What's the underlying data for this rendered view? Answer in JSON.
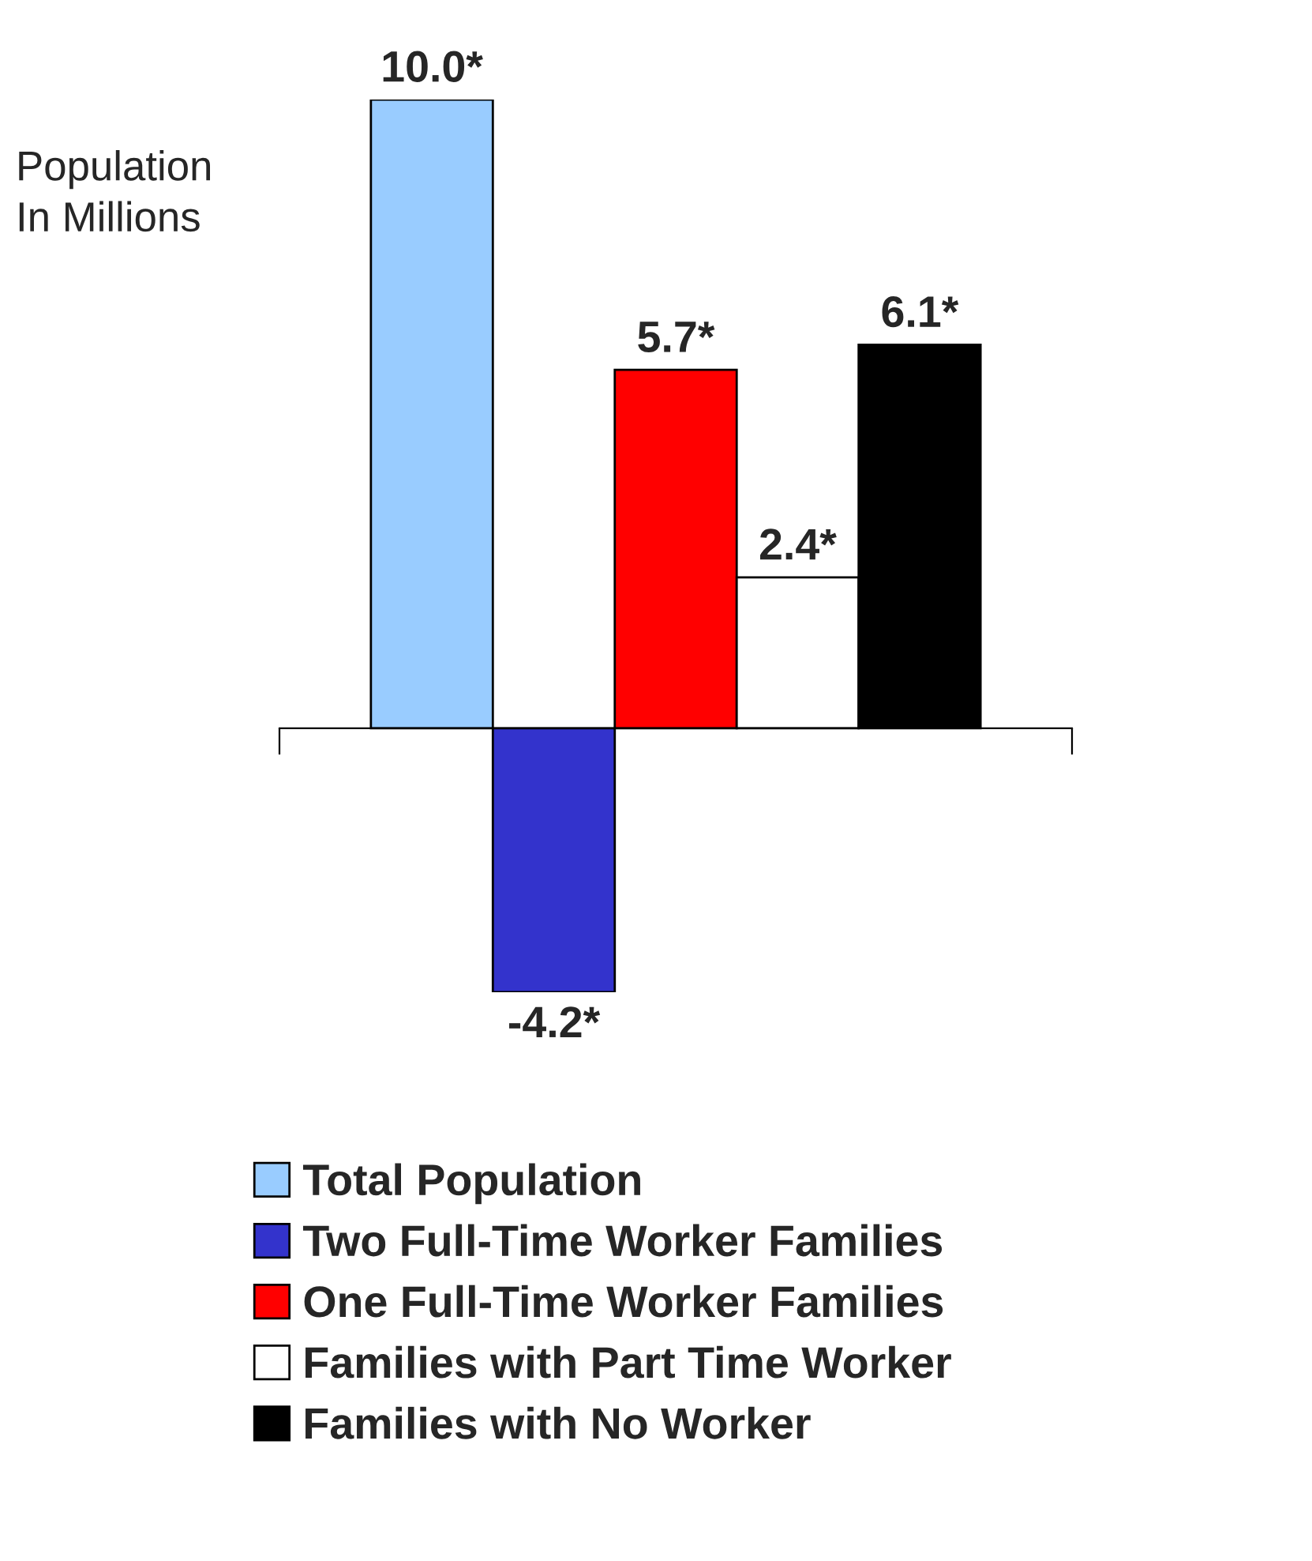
{
  "chart_data": {
    "type": "bar",
    "ylabel": "Population\nIn Millions",
    "categories": [
      null
    ],
    "series": [
      {
        "name": "Total Population",
        "color": "#99ccff",
        "values": [
          10.0
        ],
        "value_labels": [
          "10.0*"
        ]
      },
      {
        "name": "Two Full-Time Worker Families",
        "color": "#3333cc",
        "values": [
          -4.2
        ],
        "value_labels": [
          "-4.2*"
        ]
      },
      {
        "name": "One Full-Time Worker Families",
        "color": "#ff0000",
        "values": [
          5.7
        ],
        "value_labels": [
          "5.7*"
        ]
      },
      {
        "name": "Families with Part Time Worker",
        "color": "#ffffff",
        "values": [
          2.4
        ],
        "value_labels": [
          "2.4*"
        ]
      },
      {
        "name": "Families with No Worker",
        "color": "#000000",
        "values": [
          6.1
        ],
        "value_labels": [
          "6.1*"
        ]
      }
    ],
    "legend": "bottom",
    "grid": false
  }
}
